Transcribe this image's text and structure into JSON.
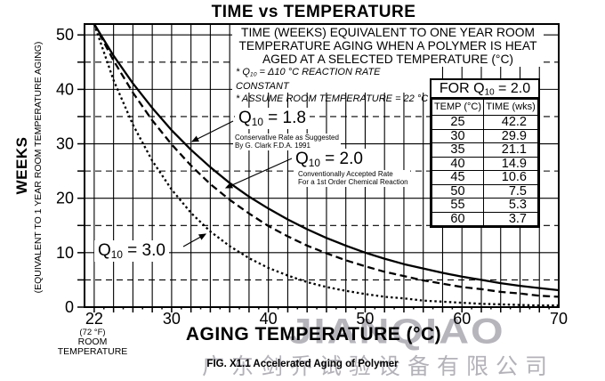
{
  "title": "TIME vs TEMPERATURE",
  "description_box": {
    "lines": [
      "TIME (WEEKS) EQUIVALENT TO ONE YEAR ROOM",
      "TEMPERATURE AGING WHEN A POLYMER IS HEAT",
      "AGED AT A SELECTED TEMPERATURE (°C)"
    ]
  },
  "notes": {
    "line1": {
      "prefix": "* Q",
      "sub": "10",
      "suffix": " = Δ10 °C REACTION RATE CONSTANT"
    },
    "line2": "* ASSUME ROOM TEMPERATURE = 22 °C"
  },
  "y_axis": {
    "title": "WEEKS",
    "subtitle": "(EQUIVALENT TO 1 YEAR ROOM TEMPERATURE AGING)",
    "tick_labels": [
      "0",
      "10",
      "20",
      "30",
      "40",
      "50"
    ]
  },
  "x_axis": {
    "title": "AGING TEMPERATURE (°C)",
    "tick_labels": [
      "22",
      "30",
      "40",
      "50",
      "60",
      "70"
    ],
    "room_note": [
      "(72 °F)",
      "ROOM",
      "TEMPERATURE"
    ]
  },
  "curves": [
    {
      "label": {
        "prefix": "Q",
        "sub": "10",
        "suffix": " = 1.8"
      },
      "style": "solid",
      "note": [
        "Conservative Rate as Suggested",
        "By G. Clark F.D.A. 1991"
      ]
    },
    {
      "label": {
        "prefix": "Q",
        "sub": "10",
        "suffix": " = 2.0"
      },
      "style": "dashed",
      "note": [
        "Conventionally Accepted Rate",
        "For a 1st Order Chemical Reaction"
      ]
    },
    {
      "label": {
        "prefix": "Q",
        "sub": "10",
        "suffix": " = 3.0"
      },
      "style": "dotted",
      "note": []
    }
  ],
  "table": {
    "title": {
      "prefix": "FOR Q",
      "sub": "10",
      "suffix": " = 2.0"
    },
    "columns": [
      "TEMP (°C)",
      "TIME (wks)"
    ],
    "rows": [
      [
        "25",
        "42.2"
      ],
      [
        "30",
        "29.9"
      ],
      [
        "35",
        "21.1"
      ],
      [
        "40",
        "14.9"
      ],
      [
        "45",
        "10.6"
      ],
      [
        "50",
        "7.5"
      ],
      [
        "55",
        "5.3"
      ],
      [
        "60",
        "3.7"
      ]
    ]
  },
  "caption": "FIG. X1.1 Accelerated Aging of Polymer",
  "watermark": {
    "logo": "JIANQIAO",
    "company": "广东剑乔试验设备有限公司"
  },
  "colors": {
    "line": "#000000",
    "background": "#ffffff",
    "watermark": "#b7b5bc"
  },
  "chart_data": {
    "type": "line",
    "title": "TIME vs TEMPERATURE",
    "xlabel": "AGING TEMPERATURE (°C)",
    "ylabel": "WEEKS (EQUIVALENT TO 1 YEAR ROOM TEMPERATURE AGING)",
    "xlim": [
      21,
      70
    ],
    "ylim": [
      0,
      52
    ],
    "x_ticks": [
      22,
      30,
      40,
      50,
      60,
      70
    ],
    "y_ticks": [
      0,
      10,
      20,
      30,
      40,
      50
    ],
    "grid": "solid verticals every 2 °C; solid horizontals every 10 wks, dashed horizontals every 5 wks",
    "legend_position": "inline-annotations",
    "x": [
      22,
      24,
      26,
      28,
      30,
      32,
      34,
      36,
      38,
      40,
      42,
      44,
      46,
      48,
      50,
      52,
      54,
      56,
      58,
      60,
      62,
      64,
      66,
      68,
      70
    ],
    "series": [
      {
        "name": "Q10 = 1.8",
        "line_style": "solid",
        "values": [
          52,
          46.2,
          41.1,
          36.6,
          32.5,
          28.9,
          25.7,
          22.8,
          20.3,
          18.1,
          16.1,
          14.3,
          12.7,
          11.3,
          10.0,
          8.9,
          7.9,
          7.1,
          6.3,
          5.6,
          5.0,
          4.4,
          3.9,
          3.5,
          3.1
        ]
      },
      {
        "name": "Q10 = 2.0",
        "line_style": "dashed",
        "values": [
          52,
          45.3,
          39.4,
          34.3,
          29.9,
          26.0,
          22.6,
          19.7,
          17.2,
          14.9,
          13.0,
          11.3,
          9.9,
          8.6,
          7.5,
          6.5,
          5.7,
          4.9,
          4.3,
          3.7,
          3.3,
          2.8,
          2.5,
          2.1,
          1.9
        ]
      },
      {
        "name": "Q10 = 3.0",
        "line_style": "dotted",
        "values": [
          52,
          41.7,
          33.5,
          26.9,
          21.6,
          17.3,
          13.9,
          11.2,
          9.0,
          7.2,
          5.8,
          4.6,
          3.7,
          3.0,
          2.4,
          1.9,
          1.6,
          1.2,
          1.0,
          0.8,
          0.6,
          0.5,
          0.4,
          0.3,
          0.3
        ]
      }
    ]
  }
}
